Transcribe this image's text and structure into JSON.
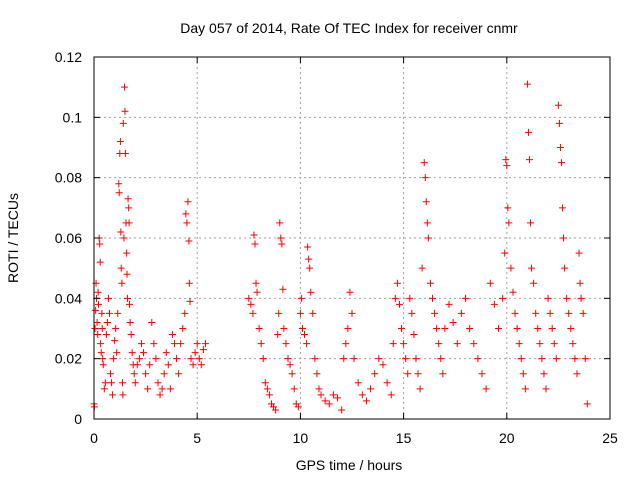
{
  "chart_data": {
    "type": "scatter",
    "title": "Day 057 of 2014, Rate Of TEC Index for receiver cnmr",
    "xlabel": "GPS time / hours",
    "ylabel": "ROTI / TECUs",
    "xlim": [
      0,
      25
    ],
    "ylim": [
      0,
      0.12
    ],
    "x_ticks": [
      0,
      5,
      10,
      15,
      20,
      25
    ],
    "y_ticks": [
      0,
      0.02,
      0.04,
      0.06,
      0.08,
      0.1,
      0.12
    ],
    "x_tick_labels": [
      "0",
      "5",
      "10",
      "15",
      "20",
      "25"
    ],
    "y_tick_labels": [
      "0",
      "0.02",
      "0.04",
      "0.06",
      "0.08",
      "0.1",
      "0.12"
    ],
    "grid": true,
    "marker": "+",
    "color": "#ff0000",
    "series": [
      {
        "name": "ROTI",
        "points": [
          [
            0.0,
            0.005
          ],
          [
            0.02,
            0.004
          ],
          [
            0.05,
            0.03
          ],
          [
            0.08,
            0.036
          ],
          [
            0.1,
            0.045
          ],
          [
            0.12,
            0.04
          ],
          [
            0.15,
            0.032
          ],
          [
            0.18,
            0.028
          ],
          [
            0.2,
            0.042
          ],
          [
            0.22,
            0.038
          ],
          [
            0.25,
            0.06
          ],
          [
            0.28,
            0.058
          ],
          [
            0.3,
            0.052
          ],
          [
            0.32,
            0.025
          ],
          [
            0.35,
            0.022
          ],
          [
            0.38,
            0.035
          ],
          [
            0.4,
            0.03
          ],
          [
            0.42,
            0.02
          ],
          [
            0.45,
            0.018
          ],
          [
            0.5,
            0.01
          ],
          [
            0.55,
            0.012
          ],
          [
            0.6,
            0.028
          ],
          [
            0.65,
            0.032
          ],
          [
            0.7,
            0.04
          ],
          [
            0.75,
            0.035
          ],
          [
            0.8,
            0.015
          ],
          [
            0.85,
            0.012
          ],
          [
            0.9,
            0.008
          ],
          [
            0.95,
            0.02
          ],
          [
            1.0,
            0.026
          ],
          [
            1.05,
            0.03
          ],
          [
            1.1,
            0.022
          ],
          [
            1.15,
            0.035
          ],
          [
            1.2,
            0.078
          ],
          [
            1.22,
            0.075
          ],
          [
            1.25,
            0.088
          ],
          [
            1.28,
            0.092
          ],
          [
            1.3,
            0.062
          ],
          [
            1.32,
            0.05
          ],
          [
            1.35,
            0.045
          ],
          [
            1.38,
            0.012
          ],
          [
            1.4,
            0.008
          ],
          [
            1.42,
            0.098
          ],
          [
            1.45,
            0.06
          ],
          [
            1.48,
            0.11
          ],
          [
            1.5,
            0.102
          ],
          [
            1.52,
            0.088
          ],
          [
            1.55,
            0.065
          ],
          [
            1.58,
            0.055
          ],
          [
            1.6,
            0.048
          ],
          [
            1.62,
            0.04
          ],
          [
            1.65,
            0.073
          ],
          [
            1.68,
            0.07
          ],
          [
            1.7,
            0.065
          ],
          [
            1.72,
            0.038
          ],
          [
            1.75,
            0.032
          ],
          [
            1.8,
            0.028
          ],
          [
            1.85,
            0.022
          ],
          [
            1.9,
            0.018
          ],
          [
            1.95,
            0.015
          ],
          [
            2.0,
            0.012
          ],
          [
            2.1,
            0.018
          ],
          [
            2.2,
            0.02
          ],
          [
            2.3,
            0.025
          ],
          [
            2.4,
            0.022
          ],
          [
            2.5,
            0.015
          ],
          [
            2.6,
            0.01
          ],
          [
            2.7,
            0.018
          ],
          [
            2.8,
            0.032
          ],
          [
            2.9,
            0.025
          ],
          [
            3.0,
            0.02
          ],
          [
            3.1,
            0.012
          ],
          [
            3.2,
            0.008
          ],
          [
            3.3,
            0.01
          ],
          [
            3.4,
            0.015
          ],
          [
            3.5,
            0.022
          ],
          [
            3.6,
            0.018
          ],
          [
            3.7,
            0.01
          ],
          [
            3.8,
            0.028
          ],
          [
            3.9,
            0.025
          ],
          [
            4.0,
            0.02
          ],
          [
            4.1,
            0.015
          ],
          [
            4.2,
            0.025
          ],
          [
            4.3,
            0.03
          ],
          [
            4.4,
            0.035
          ],
          [
            4.45,
            0.068
          ],
          [
            4.5,
            0.065
          ],
          [
            4.55,
            0.072
          ],
          [
            4.6,
            0.059
          ],
          [
            4.62,
            0.045
          ],
          [
            4.65,
            0.039
          ],
          [
            4.7,
            0.02
          ],
          [
            4.8,
            0.018
          ],
          [
            4.9,
            0.022
          ],
          [
            5.0,
            0.025
          ],
          [
            5.1,
            0.02
          ],
          [
            5.2,
            0.018
          ],
          [
            5.3,
            0.023
          ],
          [
            5.4,
            0.025
          ],
          [
            7.5,
            0.04
          ],
          [
            7.6,
            0.038
          ],
          [
            7.7,
            0.035
          ],
          [
            7.75,
            0.061
          ],
          [
            7.8,
            0.058
          ],
          [
            7.85,
            0.045
          ],
          [
            7.9,
            0.042
          ],
          [
            8.0,
            0.03
          ],
          [
            8.1,
            0.025
          ],
          [
            8.2,
            0.02
          ],
          [
            8.3,
            0.012
          ],
          [
            8.4,
            0.01
          ],
          [
            8.5,
            0.008
          ],
          [
            8.6,
            0.005
          ],
          [
            8.7,
            0.004
          ],
          [
            8.8,
            0.003
          ],
          [
            8.9,
            0.028
          ],
          [
            8.95,
            0.035
          ],
          [
            9.0,
            0.065
          ],
          [
            9.05,
            0.06
          ],
          [
            9.1,
            0.058
          ],
          [
            9.15,
            0.043
          ],
          [
            9.2,
            0.03
          ],
          [
            9.3,
            0.025
          ],
          [
            9.4,
            0.02
          ],
          [
            9.5,
            0.018
          ],
          [
            9.6,
            0.015
          ],
          [
            9.7,
            0.01
          ],
          [
            9.8,
            0.005
          ],
          [
            9.9,
            0.004
          ],
          [
            10.0,
            0.035
          ],
          [
            10.05,
            0.04
          ],
          [
            10.1,
            0.03
          ],
          [
            10.2,
            0.028
          ],
          [
            10.3,
            0.025
          ],
          [
            10.35,
            0.057
          ],
          [
            10.4,
            0.053
          ],
          [
            10.45,
            0.05
          ],
          [
            10.5,
            0.042
          ],
          [
            10.6,
            0.035
          ],
          [
            10.7,
            0.02
          ],
          [
            10.8,
            0.015
          ],
          [
            10.9,
            0.01
          ],
          [
            11.0,
            0.008
          ],
          [
            11.2,
            0.006
          ],
          [
            11.4,
            0.005
          ],
          [
            11.6,
            0.008
          ],
          [
            11.8,
            0.007
          ],
          [
            12.0,
            0.003
          ],
          [
            12.1,
            0.02
          ],
          [
            12.2,
            0.025
          ],
          [
            12.3,
            0.03
          ],
          [
            12.4,
            0.042
          ],
          [
            12.5,
            0.035
          ],
          [
            12.6,
            0.02
          ],
          [
            12.8,
            0.012
          ],
          [
            13.0,
            0.008
          ],
          [
            13.2,
            0.006
          ],
          [
            13.4,
            0.01
          ],
          [
            13.6,
            0.015
          ],
          [
            13.8,
            0.02
          ],
          [
            14.0,
            0.018
          ],
          [
            14.2,
            0.012
          ],
          [
            14.4,
            0.008
          ],
          [
            14.5,
            0.025
          ],
          [
            14.6,
            0.04
          ],
          [
            14.7,
            0.045
          ],
          [
            14.8,
            0.038
          ],
          [
            14.9,
            0.03
          ],
          [
            15.0,
            0.025
          ],
          [
            15.1,
            0.02
          ],
          [
            15.2,
            0.015
          ],
          [
            15.3,
            0.04
          ],
          [
            15.4,
            0.035
          ],
          [
            15.5,
            0.028
          ],
          [
            15.6,
            0.02
          ],
          [
            15.7,
            0.015
          ],
          [
            15.8,
            0.01
          ],
          [
            15.9,
            0.05
          ],
          [
            16.0,
            0.085
          ],
          [
            16.05,
            0.08
          ],
          [
            16.1,
            0.072
          ],
          [
            16.15,
            0.065
          ],
          [
            16.2,
            0.06
          ],
          [
            16.3,
            0.045
          ],
          [
            16.4,
            0.04
          ],
          [
            16.5,
            0.035
          ],
          [
            16.6,
            0.03
          ],
          [
            16.7,
            0.025
          ],
          [
            16.8,
            0.02
          ],
          [
            16.9,
            0.015
          ],
          [
            17.0,
            0.03
          ],
          [
            17.2,
            0.038
          ],
          [
            17.4,
            0.032
          ],
          [
            17.6,
            0.025
          ],
          [
            17.8,
            0.035
          ],
          [
            18.0,
            0.04
          ],
          [
            18.2,
            0.03
          ],
          [
            18.4,
            0.025
          ],
          [
            18.6,
            0.02
          ],
          [
            18.8,
            0.015
          ],
          [
            19.0,
            0.01
          ],
          [
            19.2,
            0.045
          ],
          [
            19.4,
            0.038
          ],
          [
            19.6,
            0.03
          ],
          [
            19.8,
            0.04
          ],
          [
            19.9,
            0.055
          ],
          [
            19.95,
            0.086
          ],
          [
            20.0,
            0.084
          ],
          [
            20.05,
            0.07
          ],
          [
            20.1,
            0.065
          ],
          [
            20.2,
            0.05
          ],
          [
            20.3,
            0.042
          ],
          [
            20.4,
            0.035
          ],
          [
            20.5,
            0.03
          ],
          [
            20.6,
            0.025
          ],
          [
            20.7,
            0.02
          ],
          [
            20.8,
            0.015
          ],
          [
            20.9,
            0.01
          ],
          [
            21.0,
            0.111
          ],
          [
            21.05,
            0.095
          ],
          [
            21.1,
            0.086
          ],
          [
            21.15,
            0.065
          ],
          [
            21.2,
            0.05
          ],
          [
            21.3,
            0.045
          ],
          [
            21.4,
            0.035
          ],
          [
            21.5,
            0.03
          ],
          [
            21.6,
            0.025
          ],
          [
            21.7,
            0.02
          ],
          [
            21.8,
            0.015
          ],
          [
            21.9,
            0.01
          ],
          [
            22.0,
            0.04
          ],
          [
            22.1,
            0.035
          ],
          [
            22.2,
            0.03
          ],
          [
            22.3,
            0.025
          ],
          [
            22.4,
            0.02
          ],
          [
            22.5,
            0.104
          ],
          [
            22.55,
            0.098
          ],
          [
            22.6,
            0.09
          ],
          [
            22.65,
            0.085
          ],
          [
            22.7,
            0.07
          ],
          [
            22.75,
            0.06
          ],
          [
            22.8,
            0.05
          ],
          [
            22.9,
            0.04
          ],
          [
            23.0,
            0.035
          ],
          [
            23.1,
            0.03
          ],
          [
            23.2,
            0.025
          ],
          [
            23.3,
            0.02
          ],
          [
            23.4,
            0.015
          ],
          [
            23.5,
            0.055
          ],
          [
            23.55,
            0.045
          ],
          [
            23.6,
            0.04
          ],
          [
            23.7,
            0.035
          ],
          [
            23.8,
            0.02
          ],
          [
            23.9,
            0.005
          ]
        ]
      }
    ]
  }
}
